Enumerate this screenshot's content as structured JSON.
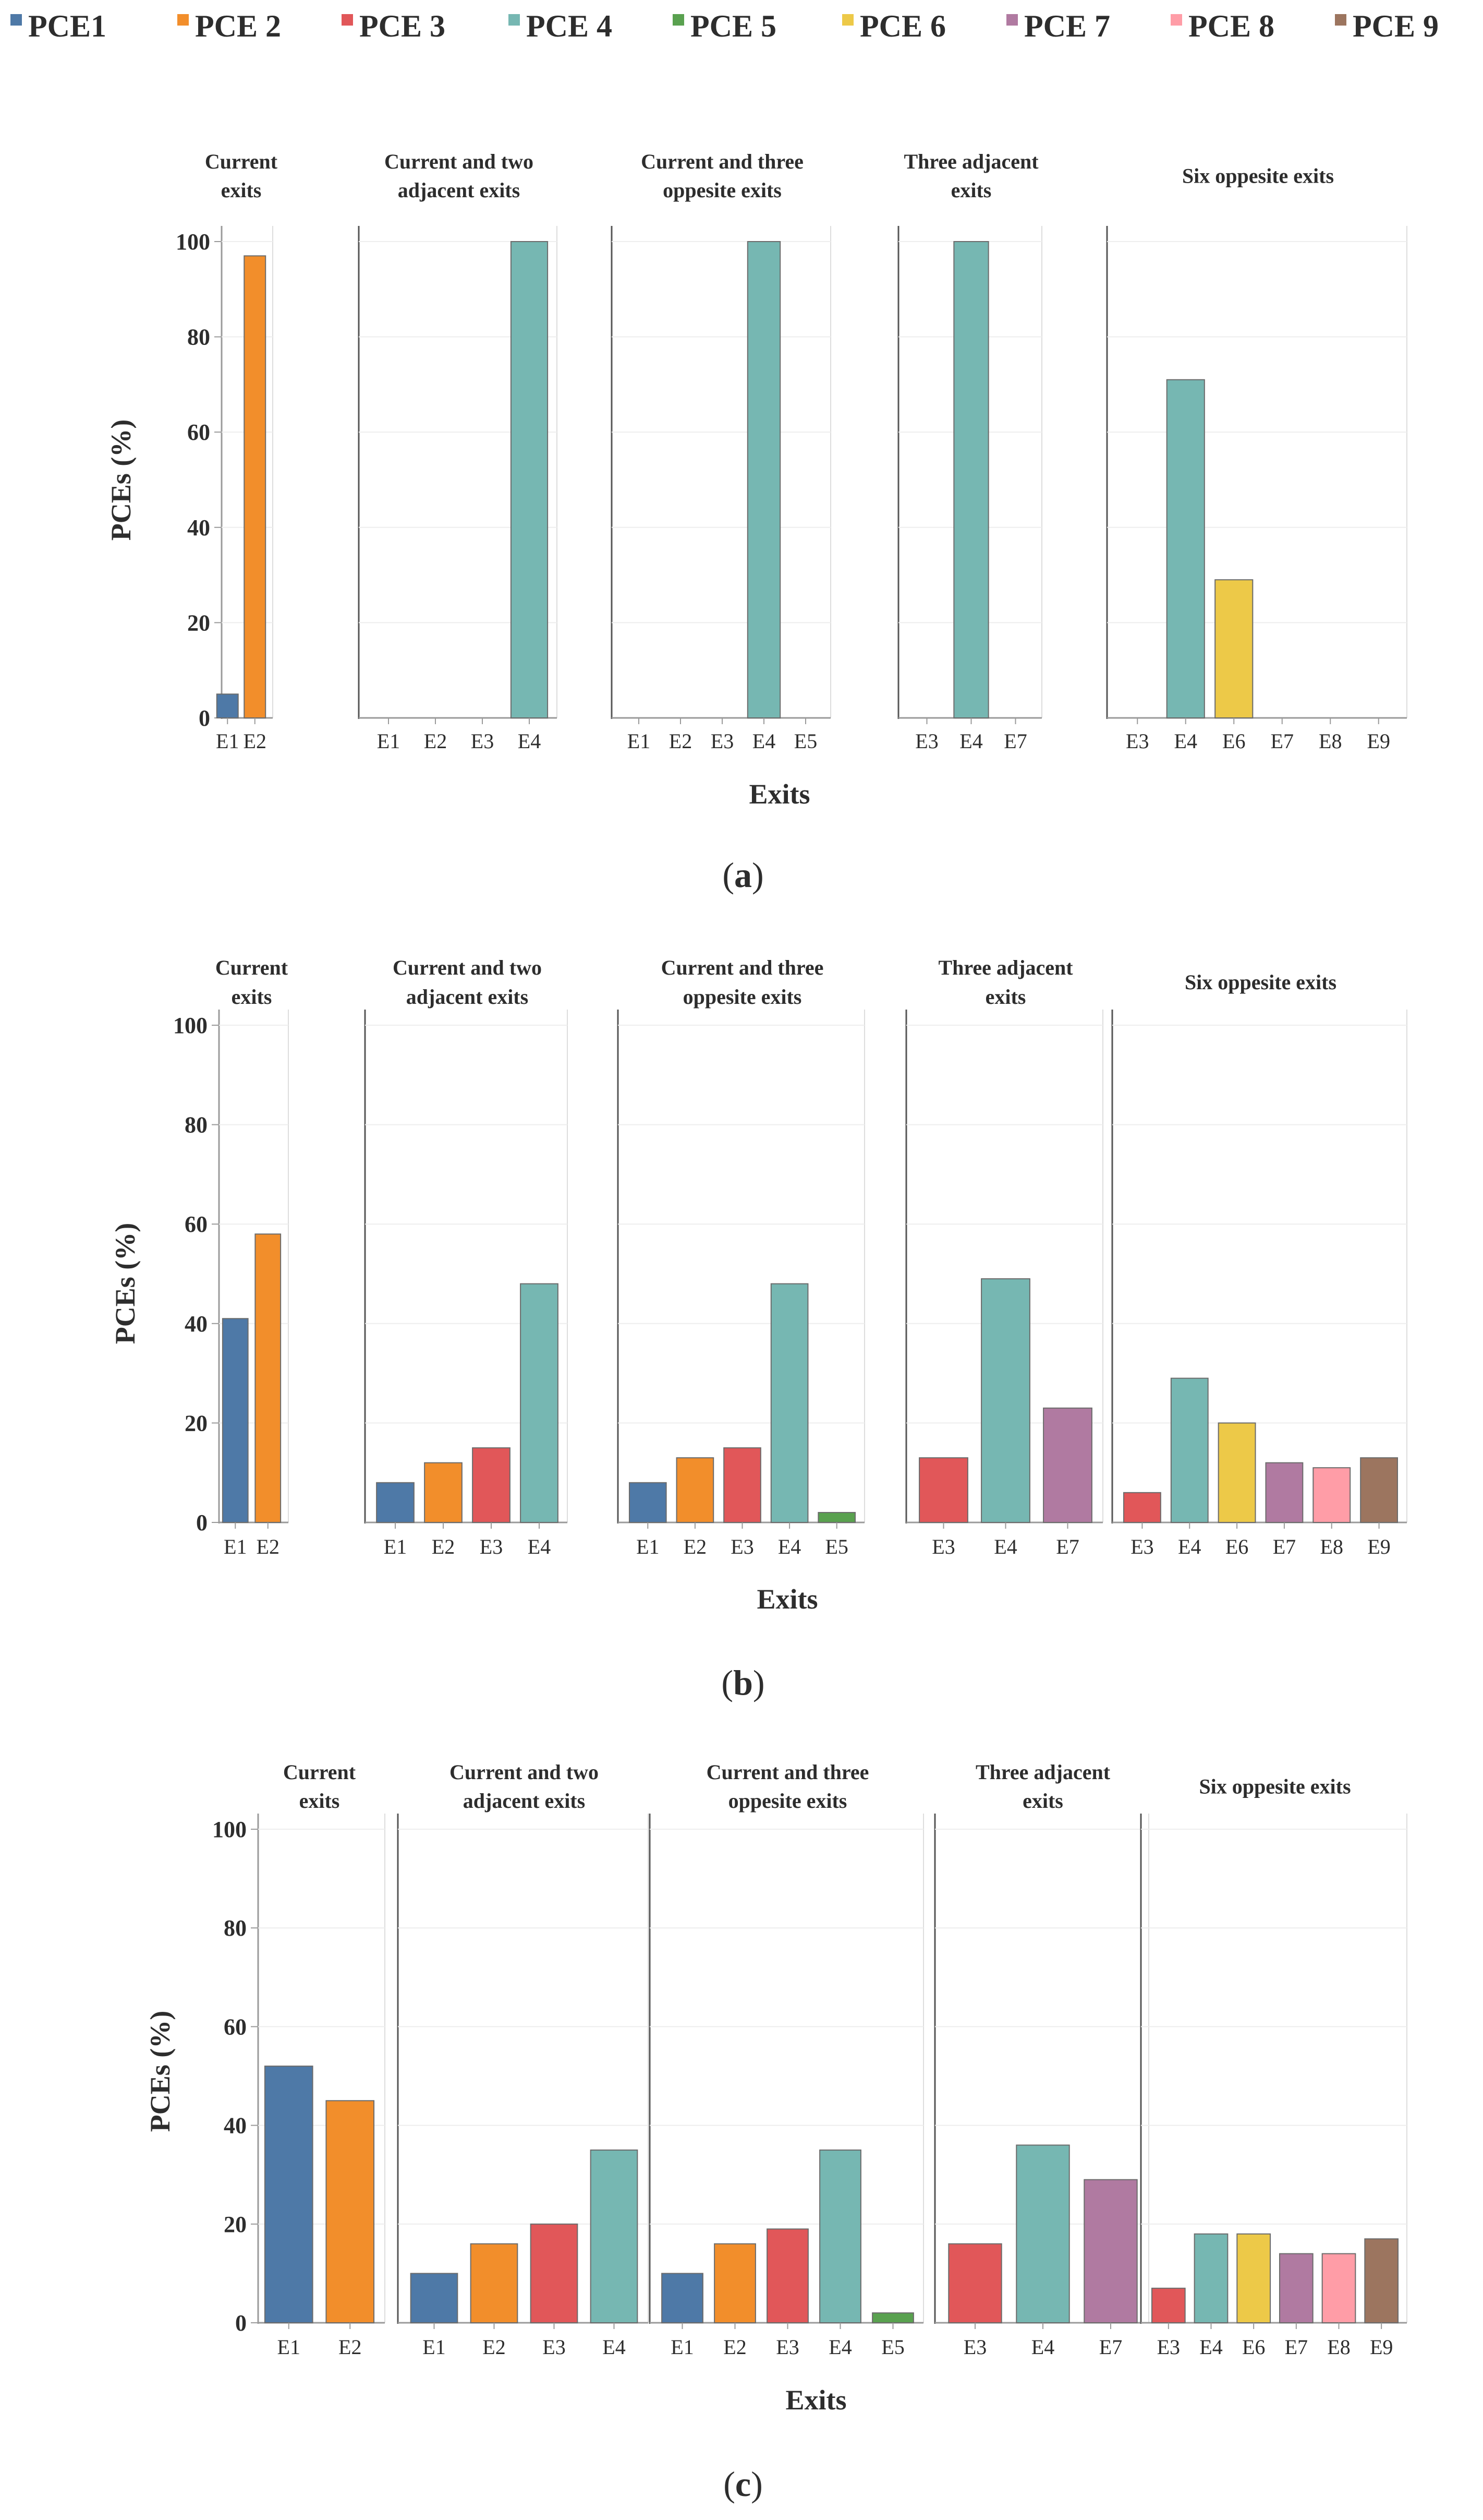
{
  "legend": [
    {
      "name": "PCE1",
      "color": "#4e79a7"
    },
    {
      "name": "PCE 2",
      "color": "#f28e2b"
    },
    {
      "name": "PCE 3",
      "color": "#e15759"
    },
    {
      "name": "PCE 4",
      "color": "#76b7b2"
    },
    {
      "name": "PCE 5",
      "color": "#59a14f"
    },
    {
      "name": "PCE 6",
      "color": "#edc948"
    },
    {
      "name": "PCE 7",
      "color": "#b07aa1"
    },
    {
      "name": "PCE 8",
      "color": "#ff9da7"
    },
    {
      "name": "PCE 9",
      "color": "#9c755f"
    }
  ],
  "exit_colors": {
    "E1": "#4e79a7",
    "E2": "#f28e2b",
    "E3": "#e15759",
    "E4": "#76b7b2",
    "E5": "#59a14f",
    "E6": "#edc948",
    "E7": "#b07aa1",
    "E8": "#ff9da7",
    "E9": "#9c755f"
  },
  "labels": {
    "ylabel": "PCEs (%)",
    "xlabel": "Exits",
    "panel_letters": [
      "a",
      "b",
      "c"
    ]
  },
  "chart_data": [
    {
      "type": "bar",
      "panel": "a",
      "ylabel": "PCEs (%)",
      "xlabel": "Exits",
      "yticks": [
        0,
        20,
        40,
        60,
        80,
        100
      ],
      "ylim": [
        0,
        100
      ],
      "groups": [
        {
          "title": [
            "Current",
            "exits"
          ],
          "categories": [
            "E1",
            "E2"
          ],
          "values": [
            5,
            97
          ]
        },
        {
          "title": [
            "Current and two",
            "adjacent exits"
          ],
          "categories": [
            "E1",
            "E2",
            "E3",
            "E4"
          ],
          "values": [
            0,
            0,
            0,
            100
          ]
        },
        {
          "title": [
            "Current and three",
            "oppesite exits"
          ],
          "categories": [
            "E1",
            "E2",
            "E3",
            "E4",
            "E5"
          ],
          "values": [
            0,
            0,
            0,
            100,
            0
          ]
        },
        {
          "title": [
            "Three adjacent",
            "exits"
          ],
          "categories": [
            "E3",
            "E4",
            "E7"
          ],
          "values": [
            0,
            100,
            0
          ]
        },
        {
          "title": [
            "Six oppesite exits"
          ],
          "categories": [
            "E3",
            "E4",
            "E6",
            "E7",
            "E8",
            "E9"
          ],
          "values": [
            0,
            71,
            29,
            0,
            0,
            0
          ]
        }
      ]
    },
    {
      "type": "bar",
      "panel": "b",
      "ylabel": "PCEs (%)",
      "xlabel": "Exits",
      "yticks": [
        0,
        20,
        40,
        60,
        80,
        100
      ],
      "ylim": [
        0,
        100
      ],
      "groups": [
        {
          "title": [
            "Current",
            "exits"
          ],
          "categories": [
            "E1",
            "E2"
          ],
          "values": [
            41,
            58
          ]
        },
        {
          "title": [
            "Current and two",
            "adjacent exits"
          ],
          "categories": [
            "E1",
            "E2",
            "E3",
            "E4"
          ],
          "values": [
            8,
            12,
            15,
            48
          ]
        },
        {
          "title": [
            "Current and three",
            "oppesite exits"
          ],
          "categories": [
            "E1",
            "E2",
            "E3",
            "E4",
            "E5"
          ],
          "values": [
            8,
            13,
            15,
            48,
            2
          ]
        },
        {
          "title": [
            "Three adjacent",
            "exits"
          ],
          "categories": [
            "E3",
            "E4",
            "E7"
          ],
          "values": [
            13,
            49,
            23
          ]
        },
        {
          "title": [
            "Six oppesite exits"
          ],
          "categories": [
            "E3",
            "E4",
            "E6",
            "E7",
            "E8",
            "E9"
          ],
          "values": [
            6,
            29,
            20,
            12,
            11,
            13
          ]
        }
      ]
    },
    {
      "type": "bar",
      "panel": "c",
      "ylabel": "PCEs (%)",
      "xlabel": "Exits",
      "yticks": [
        0,
        20,
        40,
        60,
        80,
        100
      ],
      "ylim": [
        0,
        100
      ],
      "groups": [
        {
          "title": [
            "Current",
            "exits"
          ],
          "categories": [
            "E1",
            "E2"
          ],
          "values": [
            52,
            45
          ]
        },
        {
          "title": [
            "Current and two",
            "adjacent exits"
          ],
          "categories": [
            "E1",
            "E2",
            "E3",
            "E4"
          ],
          "values": [
            10,
            16,
            20,
            35
          ]
        },
        {
          "title": [
            "Current and three",
            "oppesite exits"
          ],
          "categories": [
            "E1",
            "E2",
            "E3",
            "E4",
            "E5"
          ],
          "values": [
            10,
            16,
            19,
            35,
            2
          ]
        },
        {
          "title": [
            "Three adjacent",
            "exits"
          ],
          "categories": [
            "E3",
            "E4",
            "E7"
          ],
          "values": [
            16,
            36,
            29
          ]
        },
        {
          "title": [
            "Six oppesite exits"
          ],
          "categories": [
            "E3",
            "E4",
            "E6",
            "E7",
            "E8",
            "E9"
          ],
          "values": [
            7,
            18,
            18,
            14,
            14,
            17
          ]
        }
      ]
    }
  ]
}
